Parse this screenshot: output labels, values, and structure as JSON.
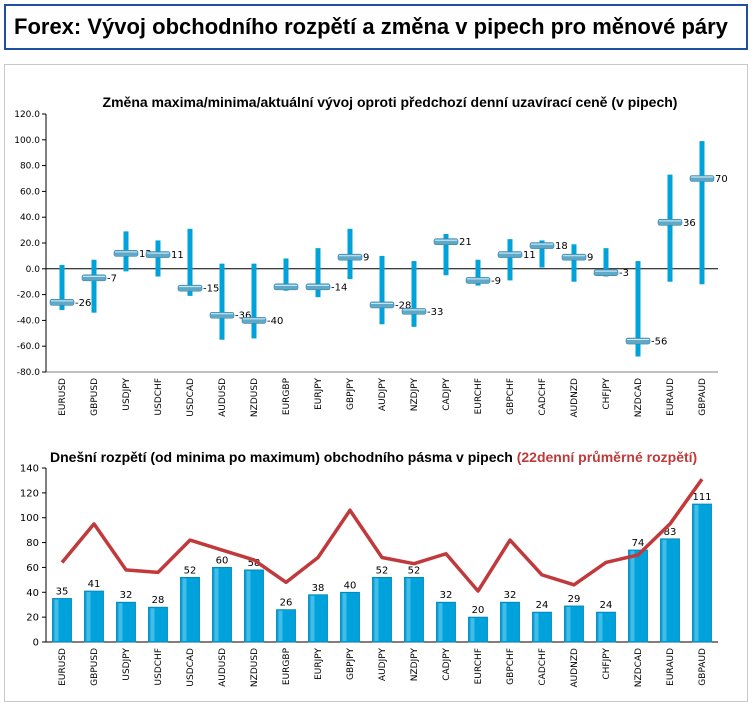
{
  "page": {
    "title": "Forex: Vývoj obchodního rozpětí a změna v pipech pro měnové páry"
  },
  "colors": {
    "header_border": "#1f4fa3",
    "bar": "#00a2dc",
    "bar_dark": "#0080b8",
    "marker": "#5fa8c8",
    "line": "#c0393b"
  },
  "chart_data": [
    {
      "type": "bar",
      "title": "Změna maxima/minima/aktuální vývoj oproti předchozí denní uzavírací ceně (v pipech)",
      "categories": [
        "EURUSD",
        "GBPUSD",
        "USDJPY",
        "USDCHF",
        "USDCAD",
        "AUDUSD",
        "NZDUSD",
        "EURGBP",
        "EURJPY",
        "GBPJPY",
        "AUDJPY",
        "NZDJPY",
        "CADJPY",
        "EURCHF",
        "GBPCHF",
        "CADCHF",
        "AUDNZD",
        "CHFJPY",
        "NZDCAD",
        "EURAUD",
        "GBPAUD"
      ],
      "series": [
        {
          "name": "high",
          "values": [
            3,
            7,
            29,
            22,
            31,
            4,
            4,
            8,
            16,
            31,
            10,
            6,
            27,
            7,
            23,
            22,
            19,
            16,
            6,
            73,
            99
          ]
        },
        {
          "name": "low",
          "values": [
            -32,
            -34,
            -2,
            -6,
            -21,
            -55,
            -54,
            -17,
            -22,
            -8,
            -43,
            -45,
            -5,
            -13,
            -9,
            1,
            -10,
            -6,
            -68,
            -10,
            -12
          ]
        },
        {
          "name": "current",
          "values": [
            -26,
            -7,
            12,
            11,
            -15,
            -36,
            -40,
            -14,
            -14,
            9,
            -28,
            -33,
            21,
            -9,
            11,
            18,
            9,
            -3,
            -56,
            36,
            70
          ]
        }
      ],
      "data_labels": [
        "-26",
        "-7",
        "12",
        "11",
        "-15",
        "-36",
        "-40",
        "",
        "-14",
        "9",
        "-28",
        "-33",
        "21",
        "-9",
        "11",
        "18",
        "9",
        "-3",
        "-56",
        "36",
        "70"
      ],
      "ylim": [
        -80,
        120
      ],
      "yticks": [
        "120.0",
        "100.0",
        "80.0",
        "60.0",
        "40.0",
        "20.0",
        "0.0",
        "-20.0",
        "-40.0",
        "-60.0",
        "-80.0"
      ],
      "xlabel": "",
      "ylabel": "",
      "grid": false
    },
    {
      "type": "bar",
      "title": "Dnešní rozpětí (od minima po maximum) obchodního pásma v pipech",
      "title_extra": "(22denní průměrné rozpětí)",
      "categories": [
        "EURUSD",
        "GBPUSD",
        "USDJPY",
        "USDCHF",
        "USDCAD",
        "AUDUSD",
        "NZDUSD",
        "EURGBP",
        "EURJPY",
        "GBPJPY",
        "AUDJPY",
        "NZDJPY",
        "CADJPY",
        "EURCHF",
        "GBPCHF",
        "CADCHF",
        "AUDNZD",
        "CHFJPY",
        "NZDCAD",
        "EURAUD",
        "GBPAUD"
      ],
      "series": [
        {
          "name": "Dnešní rozpětí",
          "values": [
            35,
            41,
            32,
            28,
            52,
            60,
            58,
            26,
            38,
            40,
            52,
            52,
            32,
            20,
            32,
            24,
            29,
            24,
            74,
            83,
            111
          ]
        },
        {
          "name": "22denní průměrné rozpětí",
          "type": "line",
          "values": [
            64,
            95,
            58,
            56,
            82,
            74,
            66,
            48,
            68,
            106,
            68,
            63,
            71,
            41,
            82,
            54,
            46,
            64,
            70,
            95,
            131
          ]
        }
      ],
      "data_labels": [
        "35",
        "41",
        "32",
        "28",
        "52",
        "60",
        "58",
        "26",
        "38",
        "40",
        "52",
        "52",
        "32",
        "20",
        "32",
        "24",
        "29",
        "24",
        "74",
        "83",
        "111"
      ],
      "ylim": [
        0,
        140
      ],
      "yticks": [
        "140",
        "120",
        "100",
        "80",
        "60",
        "40",
        "20",
        "0"
      ],
      "xlabel": "",
      "ylabel": "",
      "grid": false
    }
  ]
}
